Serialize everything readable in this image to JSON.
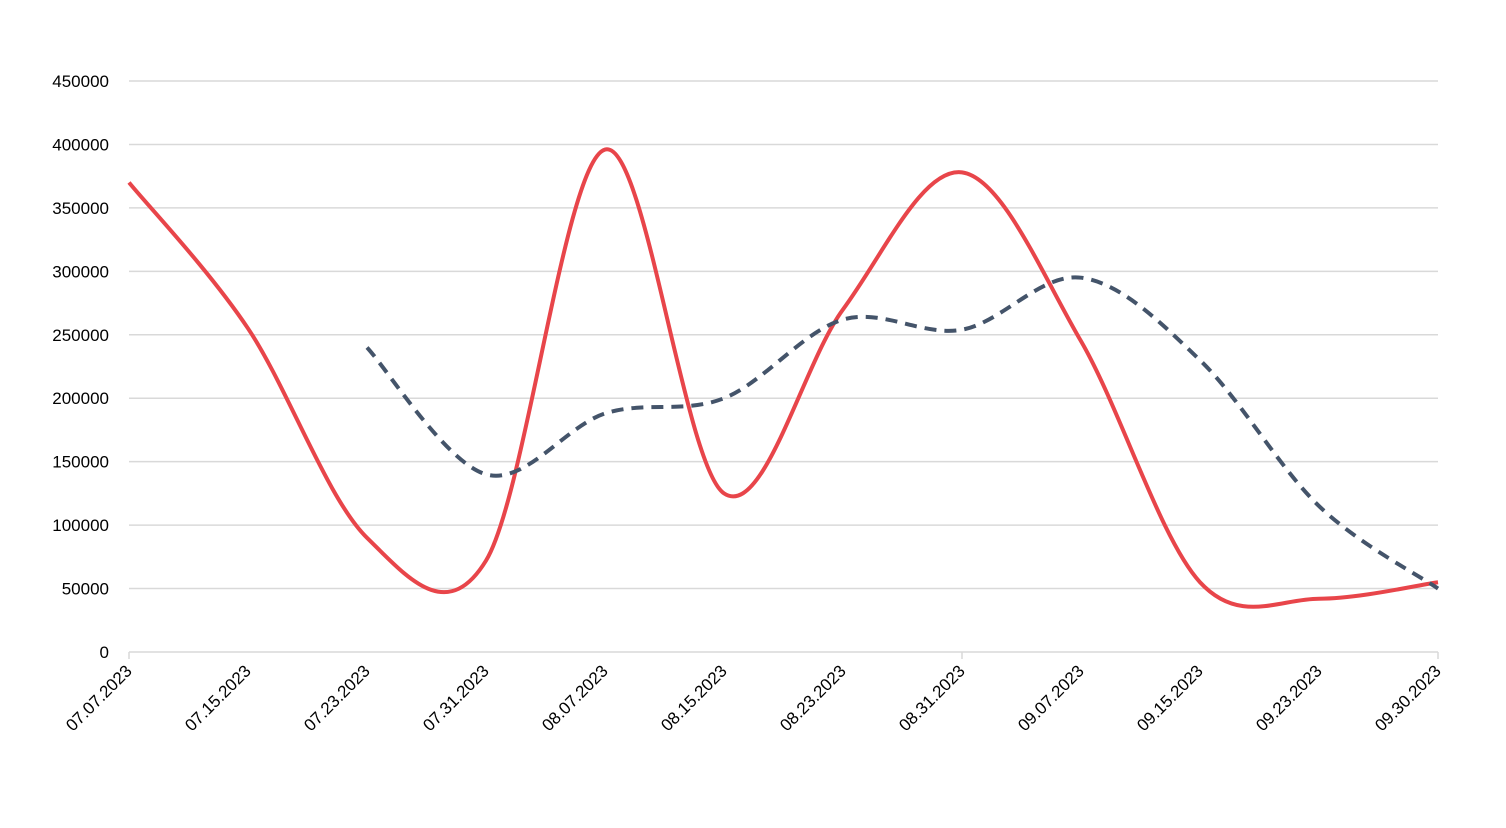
{
  "chart_data": {
    "type": "line",
    "title": "",
    "xlabel": "",
    "ylabel": "",
    "categories": [
      "07.07.2023",
      "07.15.2023",
      "07.23.2023",
      "07.31.2023",
      "08.07.2023",
      "08.15.2023",
      "08.23.2023",
      "08.31.2023",
      "09.07.2023",
      "09.15.2023",
      "09.23.2023",
      "09.30.2023"
    ],
    "y_ticks": [
      "0",
      "50000",
      "100000",
      "150000",
      "200000",
      "250000",
      "300000",
      "350000",
      "400000",
      "450000"
    ],
    "ylim": [
      0,
      450000
    ],
    "grid": true,
    "legend": "none",
    "series": [
      {
        "color": "#e8454a",
        "style": "solid",
        "values": [
          370000,
          255000,
          90000,
          72000,
          396000,
          125000,
          270000,
          378000,
          245000,
          55000,
          42000,
          55000
        ]
      },
      {
        "color": "#44546a",
        "style": "dashed",
        "values": [
          null,
          null,
          240000,
          140000,
          188000,
          200000,
          262000,
          254000,
          295000,
          230000,
          115000,
          50000
        ]
      }
    ]
  }
}
